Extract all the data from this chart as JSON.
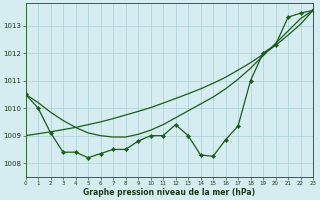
{
  "x": [
    0,
    1,
    2,
    3,
    4,
    5,
    6,
    7,
    8,
    9,
    10,
    11,
    12,
    13,
    14,
    15,
    16,
    17,
    18,
    19,
    20,
    21,
    22,
    23
  ],
  "y_jagged": [
    1010.5,
    1010.0,
    1009.1,
    1008.4,
    1008.4,
    1008.2,
    1008.35,
    1008.5,
    1008.5,
    1008.8,
    1009.0,
    1009.0,
    1009.4,
    1009.0,
    1008.3,
    1008.25,
    1008.85,
    1009.35,
    1011.0,
    1012.0,
    1012.3,
    1013.3,
    1013.45,
    1013.55
  ],
  "y_smooth1": [
    1010.5,
    1010.2,
    1009.85,
    1009.55,
    1009.3,
    1009.1,
    1009.0,
    1008.95,
    1008.95,
    1009.05,
    1009.2,
    1009.4,
    1009.65,
    1009.9,
    1010.15,
    1010.4,
    1010.7,
    1011.05,
    1011.45,
    1011.9,
    1012.35,
    1012.8,
    1013.25,
    1013.55
  ],
  "y_smooth2": [
    1009.0,
    1009.07,
    1009.14,
    1009.22,
    1009.3,
    1009.4,
    1009.5,
    1009.62,
    1009.75,
    1009.88,
    1010.02,
    1010.18,
    1010.35,
    1010.52,
    1010.7,
    1010.9,
    1011.12,
    1011.38,
    1011.65,
    1011.95,
    1012.28,
    1012.65,
    1013.05,
    1013.55
  ],
  "title": "Graphe pression niveau de la mer (hPa)",
  "bg_color": "#d5edf0",
  "grid_color": "#aad0d4",
  "line_color": "#1a5c1a",
  "xlim": [
    0,
    23
  ],
  "ylim": [
    1007.5,
    1013.8
  ],
  "yticks": [
    1008,
    1009,
    1010,
    1011,
    1012,
    1013
  ],
  "xticks": [
    0,
    1,
    2,
    3,
    4,
    5,
    6,
    7,
    8,
    9,
    10,
    11,
    12,
    13,
    14,
    15,
    16,
    17,
    18,
    19,
    20,
    21,
    22,
    23
  ],
  "xlabel_fontsize": 5.5,
  "tick_fontsize": 4.5,
  "linewidth": 0.9,
  "markersize": 2.2
}
